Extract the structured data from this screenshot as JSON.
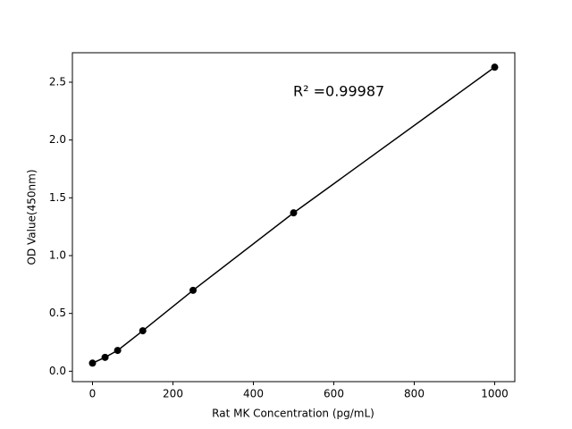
{
  "chart_data": {
    "type": "line",
    "x_label": "Rat MK Concentration (pg/mL)",
    "y_label": "OD Value(450nm)",
    "annotation": "R² =0.99987",
    "x": [
      0,
      31.25,
      62.5,
      125,
      250,
      500,
      1000
    ],
    "series": [
      {
        "color": "#000000",
        "values": [
          0.07,
          0.12,
          0.18,
          0.35,
          0.7,
          1.37,
          2.63
        ]
      }
    ],
    "xlim": [
      -50,
      1050
    ],
    "ylim": [
      -0.09,
      2.755
    ],
    "xticks": [
      0,
      200,
      400,
      600,
      800,
      1000
    ],
    "yticks": [
      {
        "value": 0,
        "label": "0.0"
      },
      0.5,
      {
        "value": 1,
        "label": "1.0"
      },
      1.5,
      {
        "value": 2,
        "label": "2.0"
      },
      2.5
    ],
    "grid": false,
    "markers": true
  }
}
